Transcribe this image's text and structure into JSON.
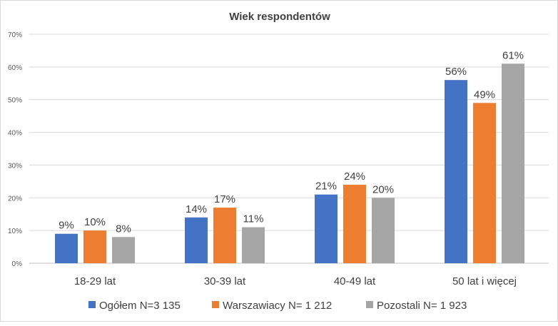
{
  "chart_data": {
    "type": "bar",
    "title": "Wiek respondentów",
    "xlabel": "",
    "ylabel": "",
    "categories": [
      "18-29 lat",
      "30-39 lat",
      "40-49 lat",
      "50 lat i więcej"
    ],
    "series": [
      {
        "name": "Ogółem N=3 135",
        "color": "#4472C4",
        "values": [
          9,
          14,
          21,
          56
        ]
      },
      {
        "name": "Warszawiacy N= 1 212",
        "color": "#ED7D31",
        "values": [
          10,
          17,
          24,
          49
        ]
      },
      {
        "name": "Pozostali N= 1 923",
        "color": "#A5A5A5",
        "values": [
          8,
          11,
          20,
          61
        ]
      }
    ],
    "ylim": [
      0,
      70
    ],
    "yticks": [
      "0%",
      "10%",
      "20%",
      "30%",
      "40%",
      "50%",
      "60%",
      "70%"
    ],
    "value_suffix": "%",
    "grid": true,
    "legend": "bottom"
  }
}
